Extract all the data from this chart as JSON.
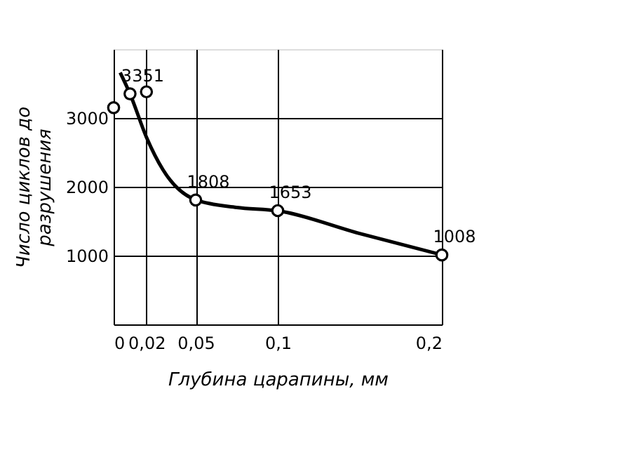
{
  "chart_data": {
    "type": "line",
    "xlabel": "Глубина царапины, мм",
    "ylabel": "Число циклов до\nразрушения",
    "xlim": [
      0,
      0.2
    ],
    "ylim": [
      0,
      4000
    ],
    "xticks": [
      0,
      {
        "value": 0.02,
        "label": "0,02"
      },
      {
        "value": 0.05,
        "label": "0,05"
      },
      {
        "value": 0.1,
        "label": "0,1"
      },
      {
        "value": 0.2,
        "label": "0,2"
      }
    ],
    "yticks": [
      1000,
      2000,
      3000
    ],
    "grid": true,
    "series": [
      {
        "color": "#000000",
        "marker": "none",
        "line_style": "solid",
        "x": [
          0.004,
          0.01,
          0.02,
          0.03,
          0.05,
          0.075,
          0.1,
          0.15,
          0.2
        ],
        "values": [
          3660,
          3350,
          2720,
          2250,
          1810,
          1700,
          1650,
          1320,
          1010
        ]
      },
      {
        "type": "scatter",
        "color": "#000000",
        "marker": "circle",
        "x": [
          0,
          0.01,
          0.02,
          0.05,
          0.1,
          0.2
        ],
        "values": [
          3150,
          3351,
          3380,
          1808,
          1653,
          1008
        ],
        "value_labels": [
          null,
          "3351",
          null,
          "1808",
          "1653",
          "1008"
        ]
      }
    ]
  }
}
